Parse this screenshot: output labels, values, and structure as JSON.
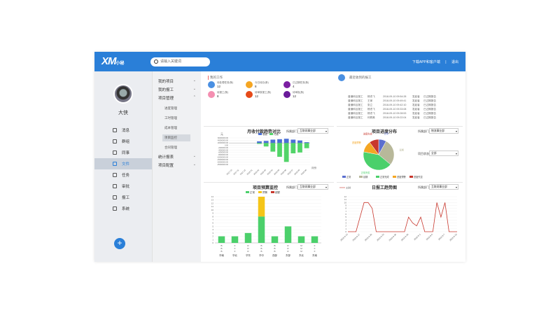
{
  "app": {
    "logo": "XM",
    "logo_small": "小秘"
  },
  "header": {
    "search_placeholder": "请输入关键词",
    "download_link": "下载APP和客户端",
    "separator": "|",
    "logout_link": "退出"
  },
  "user": {
    "name": "大侠"
  },
  "nav": [
    {
      "label": "消息",
      "icon": "message-icon"
    },
    {
      "label": "群组",
      "icon": "group-icon"
    },
    {
      "label": "同事",
      "icon": "colleague-icon"
    },
    {
      "label": "文件",
      "icon": "file-icon",
      "active": true
    },
    {
      "label": "任务",
      "icon": "task-icon"
    },
    {
      "label": "审批",
      "icon": "approval-icon"
    },
    {
      "label": "报工",
      "icon": "report-icon"
    },
    {
      "label": "系统",
      "icon": "system-icon"
    }
  ],
  "submenu": {
    "my_projects": "我的项目",
    "my_reports": "我的报工",
    "project_mgmt": "项目管理",
    "children": [
      "进度管理",
      "工时管理",
      "成本管理",
      "项目监控",
      "合同管理"
    ],
    "stats": "统计报表",
    "config": "项目配置"
  },
  "workflow": {
    "title": "我的工作",
    "items": [
      {
        "label": "待处理任务(条)",
        "value": "12",
        "color": "#4a90e2"
      },
      {
        "label": "今日待办(条)",
        "value": "8",
        "color": "#f5a623"
      },
      {
        "label": "已过期任务(条)",
        "value": "4",
        "color": "#7b1fa2"
      },
      {
        "label": "待报工(条)",
        "value": "8",
        "color": "#f48fb1"
      },
      {
        "label": "待审核报工(条)",
        "value": "12",
        "color": "#e64a19"
      },
      {
        "label": "待审批(条)",
        "value": "12",
        "color": "#6a1b9a"
      }
    ]
  },
  "reports": {
    "title": "最近收到的报工",
    "rows": [
      [
        "普通科目报工",
        "杨杰飞",
        "2018-09-10 09:54:28",
        "发起者",
        "已过期报告"
      ],
      [
        "普通科目报工",
        "王家",
        "2018-09-10 09:49:41",
        "发起者",
        "已过期报告"
      ],
      [
        "普通科目报工",
        "张立",
        "2018-09-10 09:42:10",
        "发起者",
        "已过期报告"
      ],
      [
        "普通科目报工",
        "杨杰飞",
        "2018-09-10 09:33:08",
        "发起者",
        "已过期报告"
      ],
      [
        "普通科目报工",
        "杨杰飞",
        "2018-09-10 09:28:53",
        "发起者",
        "已过期报告"
      ],
      [
        "普通科目报工",
        "何佩美",
        "2018-09-10 09:22:04",
        "发起者",
        "已过期报告"
      ]
    ]
  },
  "chart1": {
    "dd_label": "所属部门",
    "dd_value": "互联网事业部",
    "y_unit": "元",
    "x_tail": "月份"
  },
  "chart2": {
    "dd1_label": "所属部门",
    "dd1_value": "物流事业部",
    "dd2_label": "项目状态",
    "dd2_value": "全部"
  },
  "chart3": {
    "dd_label": "所属部门",
    "dd_value": "互联网事业部"
  },
  "chart4": {
    "dd_label": "所属部门",
    "dd_value": "互联网事业部"
  },
  "chart_data": [
    {
      "type": "bar",
      "title": "月收付款趋势对比",
      "categories": [
        "2017-10",
        "2017-11",
        "2017-12",
        "2018-01",
        "2018-02",
        "2018-03",
        "2018-04",
        "2018-05",
        "2018-06",
        "2018-07",
        "2018-08",
        "2018-09"
      ],
      "series": [
        {
          "name": "收款",
          "color": "#4a6fd6",
          "values": [
            0,
            0,
            0,
            0,
            20000000,
            25000000,
            40000000,
            45000000,
            50000000,
            40000000,
            30000000,
            10000000
          ]
        },
        {
          "name": "付款",
          "color": "#52d469",
          "values": [
            0,
            0,
            0,
            0,
            -10000000,
            -40000000,
            -100000000,
            -160000000,
            -220000000,
            -120000000,
            -110000000,
            -60000000
          ]
        }
      ],
      "yticks": [
        "60000000.00",
        "40000000.00",
        "20000000.00",
        "0.00",
        "-2000000.00",
        "-4000000.00",
        "-6000000.00",
        "-8000000.00",
        "-10000000.00",
        "-15000000.00",
        "-20000000.00",
        "-25000000.00"
      ],
      "ylim": [
        -250000000,
        60000000
      ],
      "legend_position": "top",
      "grid": true
    },
    {
      "type": "pie",
      "title": "项目进度分布",
      "slices": [
        {
          "name": "正常",
          "value": 8,
          "color": "#5b6fcf"
        },
        {
          "name": "延期",
          "value": 28,
          "color": "#b8b89a"
        },
        {
          "name": "正常完成",
          "value": 42,
          "color": "#4bd06b"
        },
        {
          "name": "进度预警",
          "value": 12,
          "color": "#f5a623"
        },
        {
          "name": "进度失控",
          "value": 10,
          "color": "#c8372d"
        }
      ],
      "legend_position": "bottom"
    },
    {
      "type": "bar",
      "title": "项目预算监控",
      "categories": [
        "华南",
        "华北",
        "华东",
        "华中",
        "西部",
        "东部",
        "东北",
        "东南"
      ],
      "series": [
        {
          "name": "正常",
          "color": "#4bd06b",
          "values": [
            2,
            2,
            3,
            8,
            2,
            5,
            2,
            2
          ]
        },
        {
          "name": "预警",
          "color": "#f5c518",
          "values": [
            0,
            0,
            0,
            6,
            0,
            0,
            0,
            0
          ]
        },
        {
          "name": "超额",
          "color": "#c8372d",
          "values": [
            0,
            0,
            0,
            0,
            0,
            0,
            0,
            0
          ]
        }
      ],
      "x_category_labels": [
        "华南",
        "华北",
        "华东",
        "华中",
        "西部",
        "东部",
        "东北",
        "东南"
      ],
      "x_label_stack": [
        "B",
        "F",
        "R",
        "B",
        "B",
        "R",
        "M",
        "F"
      ],
      "yticks": [
        0,
        1,
        2,
        3,
        4,
        5,
        6,
        7,
        8,
        9,
        10,
        11,
        12,
        13,
        14
      ],
      "ylim": [
        0,
        14
      ],
      "legend_position": "top",
      "grid": true
    },
    {
      "type": "line",
      "title": "日报工趋势图",
      "series": [
        {
          "name": "工时",
          "color": "#c8372d"
        }
      ],
      "x": [
        "2018-8-14",
        "2018-8-15",
        "2018-8-16",
        "2018-8-17",
        "2018-8-18",
        "2018-8-19",
        "2018-8-20",
        "2018-8-21",
        "2018-8-22",
        "2018-8-23",
        "2018-8-24",
        "2018-8-25",
        "2018-8-26",
        "2018-8-27",
        "2018-8-28",
        "2018-8-29",
        "2018-8-30",
        "2018-8-31",
        "2018-9-1",
        "2018-9-2",
        "2018-9-3",
        "2018-9-4",
        "2018-9-5",
        "2018-9-6",
        "2018-9-7",
        "2018-9-8",
        "2018-9-9",
        "2018-9-10"
      ],
      "x_tick_labels": [
        "2018-8-14",
        "2018-8-17",
        "2018-8-20",
        "2018-8-23",
        "2018-8-26",
        "2018-8-29",
        "2018-9-1",
        "2018-9-4",
        "2018-9-7",
        "2018-9-10"
      ],
      "values": [
        0,
        0,
        0,
        5,
        10,
        10,
        8,
        0,
        0,
        0,
        0,
        0,
        0,
        0,
        0,
        5,
        3,
        2,
        5,
        0,
        0,
        0,
        10,
        5,
        10,
        0,
        0,
        0
      ],
      "yticks": [
        0,
        1,
        2,
        3,
        4,
        5,
        6,
        7,
        8,
        9,
        10,
        11,
        12
      ],
      "ylim": [
        0,
        12
      ],
      "legend_position": "top-left",
      "grid": true
    }
  ]
}
